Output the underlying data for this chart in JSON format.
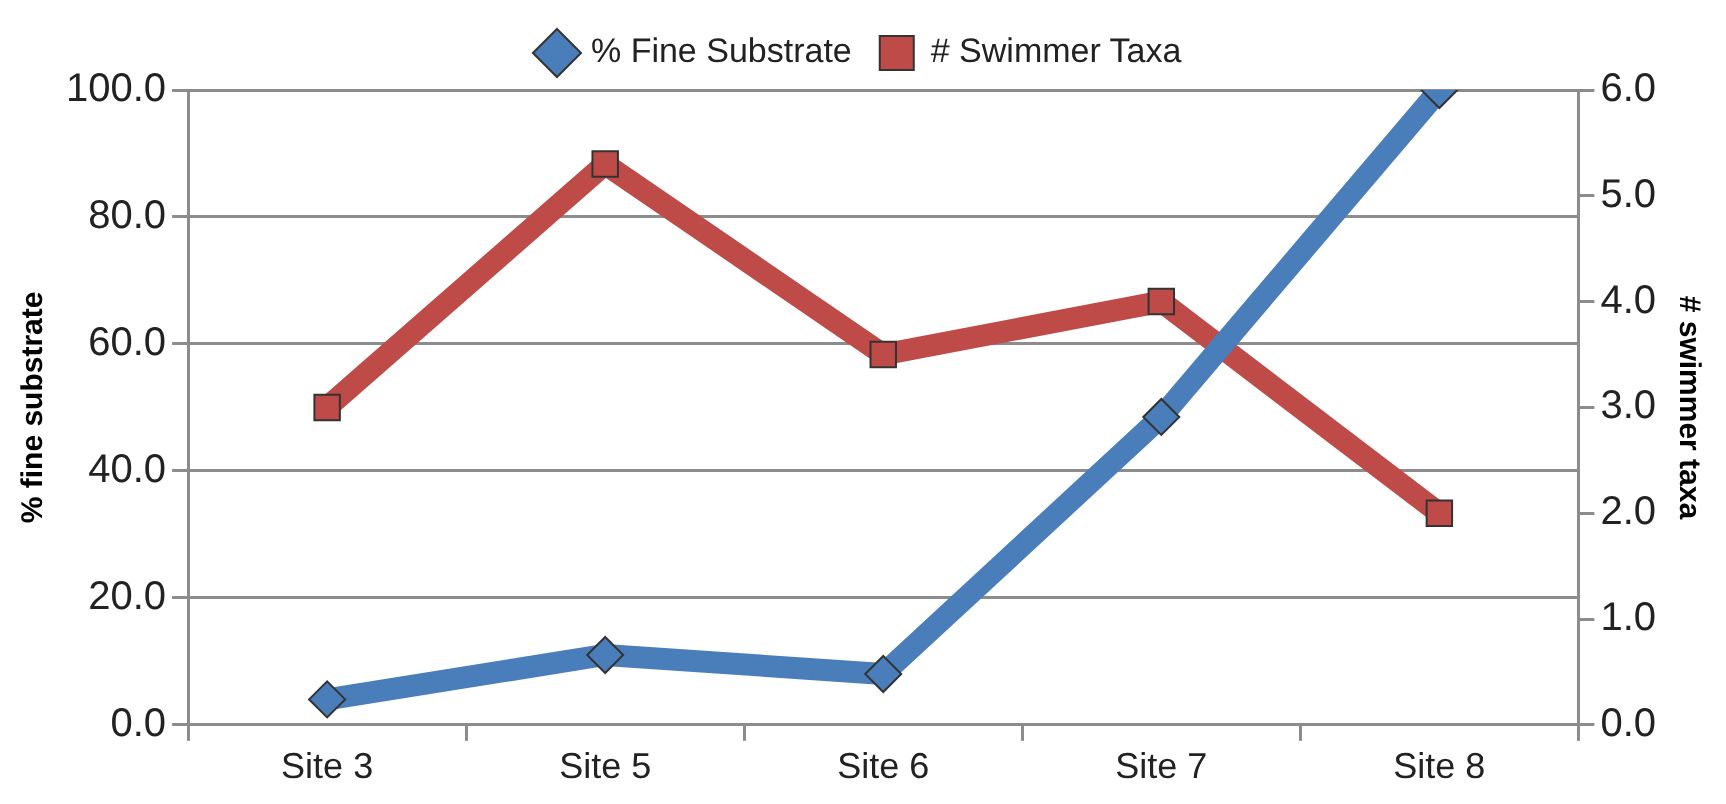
{
  "chart_data": {
    "type": "line",
    "ylabel": "% fine substrate",
    "y2label": "# swimmer taxa",
    "categories": [
      "Site 3",
      "Site 5",
      "Site 6",
      "Site 7",
      "Site 8"
    ],
    "series": [
      {
        "name": "% Fine Substrate",
        "color": "#4a7ebb",
        "marker": "diamond",
        "values": [
          4,
          11,
          8,
          48.5,
          100
        ]
      },
      {
        "name": "# Swimmer Taxa",
        "color": "#be4b48",
        "marker": "square",
        "axis": "y2",
        "values": [
          3,
          5.3,
          3.5,
          4,
          2
        ]
      }
    ],
    "ylim": [
      0,
      100
    ],
    "yticks": [
      {
        "value": 0,
        "label": "0.0"
      },
      {
        "value": 20,
        "label": "20.0"
      },
      {
        "value": 40,
        "label": "40.0"
      },
      {
        "value": 60,
        "label": "60.0"
      },
      {
        "value": 80,
        "label": "80.0"
      },
      {
        "value": 100,
        "label": "100.0"
      }
    ],
    "y2lim": [
      0,
      6
    ],
    "y2ticks": [
      {
        "value": 0,
        "label": "0.0"
      },
      {
        "value": 1,
        "label": "1.0"
      },
      {
        "value": 2,
        "label": "2.0"
      },
      {
        "value": 3,
        "label": "3.0"
      },
      {
        "value": 4,
        "label": "4.0"
      },
      {
        "value": 5,
        "label": "5.0"
      },
      {
        "value": 6,
        "label": "6.0"
      }
    ],
    "grid": "y",
    "legend": "top",
    "line_style": "solid"
  }
}
